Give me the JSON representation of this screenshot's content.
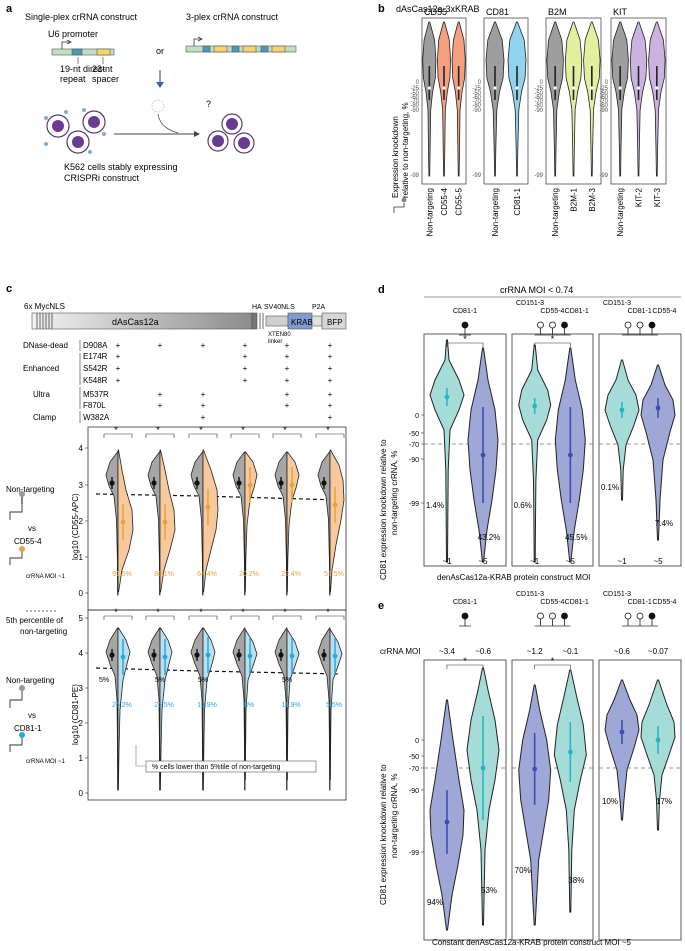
{
  "panels": {
    "a": {
      "label": "a",
      "single_plex": "Single-plex crRNA construct",
      "three_plex": "3-plex crRNA construct",
      "or": "or",
      "u6": "U6 promoter",
      "direct_repeat_l1": "19-nt direct",
      "direct_repeat_l2": "repeat",
      "spacer_l1": "23-nt",
      "spacer_l2": "spacer",
      "question": "?",
      "cells_l1": "K562 cells stably expressing",
      "cells_l2": "CRISPRi construct"
    },
    "b": {
      "label": "b",
      "title": "dAsCas12a-3xKRAB",
      "ylabel_l1": "Expression knockdown",
      "ylabel_l2": "relative to non-targeting, %",
      "yticks": [
        "0",
        "-25",
        "-50",
        "-60",
        "-70",
        "-80",
        "-90",
        "-99"
      ],
      "groups": [
        {
          "title": "CD55",
          "xlabels": [
            "Non-targeting",
            "CD55-4",
            "CD55-5"
          ],
          "colors": [
            "#9e9e9e",
            "#f3a07f",
            "#f3a07f"
          ]
        },
        {
          "title": "CD81",
          "xlabels": [
            "Non-targeting",
            "CD81-1"
          ],
          "colors": [
            "#9e9e9e",
            "#8fd3ee"
          ]
        },
        {
          "title": "B2M",
          "xlabels": [
            "Non-targeting",
            "B2M-1",
            "B2M-3"
          ],
          "colors": [
            "#9e9e9e",
            "#e3ee9e",
            "#e3ee9e"
          ]
        },
        {
          "title": "KIT",
          "xlabels": [
            "Non-targeting",
            "KIT-2",
            "KIT-3"
          ],
          "colors": [
            "#9e9e9e",
            "#cbb2e0",
            "#cbb2e0"
          ]
        }
      ]
    },
    "c": {
      "label": "c",
      "construct": {
        "mycnls": "6x MycNLS",
        "main": "dAsCas12a",
        "ha": "HA",
        "sv40": "SV40NLS",
        "xten": "XTEN80",
        "linker": "linker",
        "krab": "KRAB",
        "p2a": "P2A",
        "bfp": "BFP"
      },
      "mutation_groups": [
        {
          "name": "DNase-dead",
          "mutations": [
            "D908A"
          ]
        },
        {
          "name": "Enhanced",
          "mutations": [
            "E174R",
            "S542R",
            "K548R"
          ]
        },
        {
          "name": "Ultra",
          "mutations": [
            "M537R",
            "F870L"
          ]
        },
        {
          "name": "Clamp",
          "mutations": [
            "W382A"
          ]
        }
      ],
      "plus": "+",
      "matrix": [
        [
          1,
          1,
          1,
          1,
          1,
          1
        ],
        [
          1,
          0,
          0,
          1,
          1,
          1
        ],
        [
          1,
          0,
          0,
          1,
          1,
          1
        ],
        [
          1,
          0,
          0,
          1,
          1,
          1
        ],
        [
          0,
          1,
          1,
          0,
          1,
          1
        ],
        [
          0,
          1,
          1,
          0,
          1,
          1
        ],
        [
          0,
          0,
          1,
          0,
          0,
          1
        ]
      ],
      "legend": {
        "non_targeting": "Non-targeting",
        "vs": "vs",
        "cd55": "CD55-4",
        "cd81": "CD81-1",
        "moi": "crRNA MOI ~1",
        "pct_l1": "5th percentile of",
        "pct_l2": "non-targeting"
      },
      "top_plot": {
        "ylabel": "log10 (CD55-APC)",
        "yticks": [
          "0",
          "1",
          "2",
          "3",
          "4"
        ],
        "star": "*",
        "pcts": [
          "91.5%",
          "88.1%",
          "64.4%",
          "20.2%",
          "22.4%",
          "51.5%"
        ]
      },
      "bottom_plot": {
        "ylabel": "log10 (CD81-PE)",
        "yticks": [
          "0",
          "1",
          "2",
          "3",
          "4",
          "5"
        ],
        "star": "*",
        "nt_pct": "5%",
        "pcts": [
          "25.2%",
          "25.5%",
          "10.9%",
          "8%",
          "11.9%",
          "5.5%"
        ],
        "note": "% cells lower than 5%tile of non-targeting"
      }
    },
    "d": {
      "label": "d",
      "moi_title": "crRNA MOI < 0.74",
      "ylabel_l1": "CD81 expression knockdown relative to",
      "ylabel_l2": "non-targeting crRNA, %",
      "xlabel": "denAsCas12a-KRAB protein construct MOI",
      "yticks": [
        "0",
        "-50",
        "-70",
        "-90",
        "-99"
      ],
      "star": "*",
      "subpanels": [
        {
          "guides": [
            "CD81-1"
          ],
          "xticks": [
            "~1",
            "~5"
          ],
          "pcts": [
            "1.4%",
            "43.2%"
          ]
        },
        {
          "guides": [
            "CD151-3",
            "CD55-4",
            "CD81-1"
          ],
          "xticks": [
            "~1",
            "~5"
          ],
          "pcts": [
            "0.6%",
            "45.5%"
          ]
        },
        {
          "guides": [
            "CD151-3",
            "CD81-1",
            "CD55-4"
          ],
          "xticks": [
            "~1",
            "~5"
          ],
          "pcts": [
            "0.1%",
            "7.4%"
          ]
        }
      ]
    },
    "e": {
      "label": "e",
      "crrna_moi": "crRNA MOI",
      "ylabel_l1": "CD81 expression knockdown relative to",
      "ylabel_l2": "non-targeting crRNA, %",
      "xlabel": "Constant denAsCas12a-KRAB protein construct MOI ~5",
      "yticks": [
        "0",
        "-50",
        "-70",
        "-90",
        "-99"
      ],
      "star": "*",
      "subpanels": [
        {
          "guides": [
            "CD81-1"
          ],
          "mois": [
            "~3.4",
            "~0.6"
          ],
          "pcts": [
            "94%",
            "53%"
          ]
        },
        {
          "guides": [
            "CD151-3",
            "CD55-4",
            "CD81-1"
          ],
          "mois": [
            "~1.2",
            "~0.1"
          ],
          "pcts": [
            "70%",
            "38%"
          ]
        },
        {
          "guides": [
            "CD151-3",
            "CD81-1",
            "CD55-4"
          ],
          "mois": [
            "~0.6",
            "~0.07"
          ],
          "pcts": [
            "10%",
            "17%"
          ]
        }
      ]
    }
  },
  "colors": {
    "grey": "#a6a6a6",
    "orange": "#f7c99d",
    "orange_dark": "#e8a23c",
    "blue": "#b9e0ef",
    "blue_dark": "#29a8e0",
    "violet": "#9ea7d6",
    "violet_dark": "#3e4fae",
    "teal": "#a6dcd8",
    "teal_dark": "#27b7c4",
    "krab": "#7f9bd1"
  }
}
